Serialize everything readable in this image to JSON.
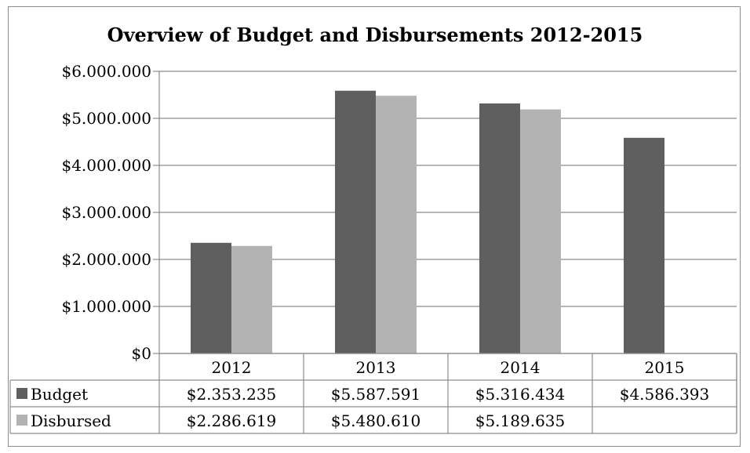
{
  "chart_data": {
    "type": "bar",
    "title": "Overview of Budget and Disbursements 2012-2015",
    "categories": [
      "2012",
      "2013",
      "2014",
      "2015"
    ],
    "series": [
      {
        "name": "Budget",
        "color": "#5f5f5f",
        "values": [
          2353235,
          5587591,
          5316434,
          4586393
        ],
        "labels": [
          "$2.353.235",
          "$5.587.591",
          "$5.316.434",
          "$4.586.393"
        ]
      },
      {
        "name": "Disbursed",
        "color": "#b3b3b3",
        "values": [
          2286619,
          5480610,
          5189635,
          null
        ],
        "labels": [
          "$2.286.619",
          "$5.480.610",
          "$5.189.635",
          ""
        ]
      }
    ],
    "ylim": [
      0,
      6000000
    ],
    "yticks": [
      {
        "value": 0,
        "label": "$0"
      },
      {
        "value": 1000000,
        "label": "$1.000.000"
      },
      {
        "value": 2000000,
        "label": "$2.000.000"
      },
      {
        "value": 3000000,
        "label": "$3.000.000"
      },
      {
        "value": 4000000,
        "label": "$4.000.000"
      },
      {
        "value": 5000000,
        "label": "$5.000.000"
      },
      {
        "value": 6000000,
        "label": "$6.000.000"
      }
    ],
    "grid": true,
    "legend": "data-table"
  }
}
